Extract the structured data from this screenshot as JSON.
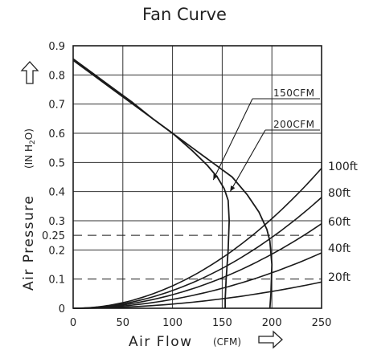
{
  "chart_data": {
    "type": "line",
    "title": "Fan Curve",
    "xlabel": "Air Flow",
    "xlabel_unit": "(CFM)",
    "ylabel": "Air Pressure",
    "ylabel_unit": "(IN H2O)",
    "ylabel_unit_parts": [
      "(IN H",
      "2",
      "O)"
    ],
    "xlim": [
      0,
      250
    ],
    "ylim": [
      0,
      0.9
    ],
    "x_ticks": [
      "0",
      "50",
      "100",
      "150",
      "200",
      "250"
    ],
    "y_ticks": [
      "0",
      "0.1",
      "0.2",
      "0.25",
      "0.3",
      "0.4",
      "0.5",
      "0.6",
      "0.7",
      "0.8",
      "0.9"
    ],
    "y_tick_values": [
      0,
      0.1,
      0.2,
      0.25,
      0.3,
      0.4,
      0.5,
      0.6,
      0.7,
      0.8,
      0.9
    ],
    "grid": true,
    "reference_lines": [
      0.1,
      0.25
    ],
    "fan_curves": [
      {
        "name": "150CFM",
        "x": [
          0,
          20,
          40,
          60,
          80,
          100,
          120,
          135,
          145,
          152,
          156,
          157,
          156,
          154,
          153,
          153
        ],
        "y": [
          0.85,
          0.8,
          0.75,
          0.7,
          0.65,
          0.6,
          0.54,
          0.49,
          0.45,
          0.41,
          0.37,
          0.3,
          0.2,
          0.1,
          0.03,
          0
        ]
      },
      {
        "name": "200CFM",
        "x": [
          0,
          20,
          40,
          60,
          80,
          100,
          120,
          140,
          160,
          175,
          187,
          195,
          198,
          200,
          199,
          198
        ],
        "y": [
          0.855,
          0.805,
          0.755,
          0.705,
          0.65,
          0.6,
          0.55,
          0.5,
          0.45,
          0.39,
          0.33,
          0.27,
          0.23,
          0.15,
          0.05,
          0
        ]
      }
    ],
    "system_curves": [
      {
        "label": "100ft",
        "y_at_250": 0.48
      },
      {
        "label": "80ft",
        "y_at_250": 0.38
      },
      {
        "label": "60ft",
        "y_at_250": 0.29
      },
      {
        "label": "40ft",
        "y_at_250": 0.19
      },
      {
        "label": "20ft",
        "y_at_250": 0.09
      }
    ],
    "colors": {
      "line": "#1a1a1a",
      "grid": "#333333",
      "background": "#ffffff"
    }
  }
}
